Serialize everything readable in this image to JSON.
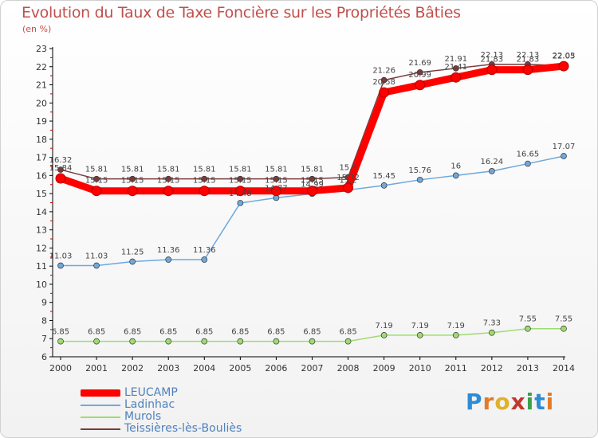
{
  "title": "Evolution du Taux de Taxe Foncière sur les Propriétés Bâties",
  "unit": "(en %)",
  "brand": "Proxiti",
  "chart_data": {
    "type": "line",
    "x": [
      "2000",
      "2001",
      "2002",
      "2003",
      "2004",
      "2005",
      "2006",
      "2007",
      "2008",
      "2009",
      "2010",
      "2011",
      "2012",
      "2013",
      "2014"
    ],
    "ylim": [
      6,
      23
    ],
    "yticks": [
      6,
      7,
      8,
      9,
      10,
      11,
      12,
      13,
      14,
      15,
      16,
      17,
      18,
      19,
      20,
      21,
      22,
      23
    ],
    "grid": false,
    "series": [
      {
        "name": "LEUCAMP",
        "color": "#ff0000",
        "values": [
          15.84,
          15.15,
          15.15,
          15.15,
          15.15,
          15.15,
          15.15,
          15.15,
          15.32,
          20.58,
          20.99,
          21.41,
          21.83,
          21.83,
          22.03
        ],
        "labels": [
          "15.84",
          "15.15",
          "15.15",
          "15.15",
          "15.15",
          "15.15",
          "15.15",
          "15.15",
          "15.32",
          "20.58",
          "20.99",
          "21.41",
          "21.83",
          "21.83",
          "22.03"
        ]
      },
      {
        "name": "Ladinhac",
        "color": "#6fa8dc",
        "values": [
          11.03,
          11.03,
          11.25,
          11.36,
          11.36,
          14.48,
          14.77,
          14.99,
          15.2,
          15.45,
          15.76,
          16.0,
          16.24,
          16.65,
          17.07
        ],
        "labels": [
          "11.03",
          "11.03",
          "11.25",
          "11.36",
          "11.36",
          "14.48",
          "14.77",
          "14.99",
          "15.2",
          "15.45",
          "15.76",
          "16",
          "16.24",
          "16.65",
          "17.07"
        ]
      },
      {
        "name": "Murols",
        "color": "#9fdc6f",
        "values": [
          6.85,
          6.85,
          6.85,
          6.85,
          6.85,
          6.85,
          6.85,
          6.85,
          6.85,
          7.19,
          7.19,
          7.19,
          7.33,
          7.55,
          7.55
        ],
        "labels": [
          "6.85",
          "6.85",
          "6.85",
          "6.85",
          "6.85",
          "6.85",
          "6.85",
          "6.85",
          "6.85",
          "7.19",
          "7.19",
          "7.19",
          "7.33",
          "7.55",
          "7.55"
        ]
      },
      {
        "name": "Teissières-lès-Bouliès",
        "color": "#7a3b3b",
        "values": [
          16.32,
          15.81,
          15.81,
          15.81,
          15.81,
          15.81,
          15.81,
          15.81,
          15.9,
          21.26,
          21.69,
          21.91,
          22.13,
          22.13,
          22.05
        ],
        "labels": [
          "16.32",
          "15.81",
          "15.81",
          "15.81",
          "15.81",
          "15.81",
          "15.81",
          "15.81",
          "15.9",
          "21.26",
          "21.69",
          "21.91",
          "22.13",
          "22.13",
          "22.05"
        ]
      }
    ]
  }
}
